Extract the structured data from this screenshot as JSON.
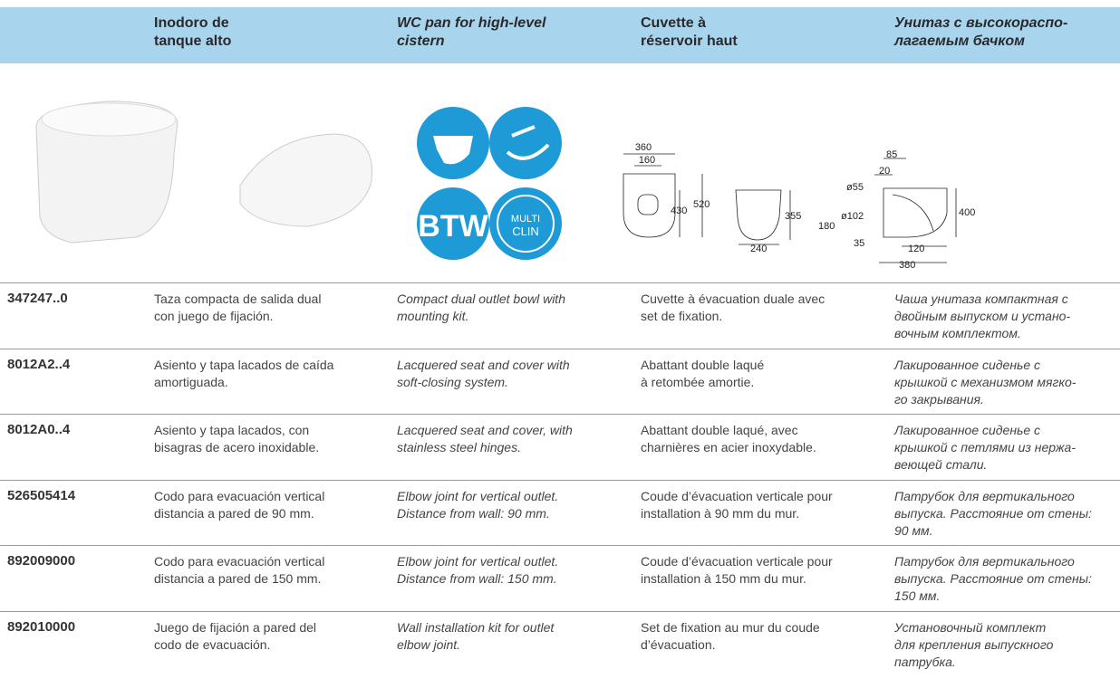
{
  "header": {
    "columns": [
      [
        "Inodoro de",
        "tanque alto"
      ],
      [
        "WC pan for high-level",
        "cistern"
      ],
      [
        "Cuvette à",
        "réservoir haut"
      ],
      [
        "Унитаз с высокораспо-",
        "лагаемым бачком"
      ]
    ]
  },
  "icons": {
    "btw": "BTW",
    "multiclin": [
      "MULTI",
      "CLIN"
    ]
  },
  "drawings": {
    "front": {
      "width_top": "360",
      "width_inner": "160",
      "height_total": "520",
      "height_inner": "430"
    },
    "side": {
      "height": "355",
      "width": "240"
    },
    "section": {
      "top": "85",
      "offset": "20",
      "d1": "ø55",
      "d2": "ø102",
      "h_outlet": "180",
      "height": "400",
      "bottom": "35",
      "depth_inner": "120",
      "depth": "380"
    }
  },
  "table": {
    "rows": [
      {
        "code": "347247..0",
        "cells": [
          [
            "Taza compacta de salida dual",
            "con juego de fijación."
          ],
          [
            "Compact dual outlet bowl with",
            "mounting kit."
          ],
          [
            "Cuvette à évacuation duale avec",
            "set de fixation."
          ],
          [
            "Чаша унитаза компактная с",
            "двойным выпуском и устано-",
            "вочным комплектом."
          ]
        ]
      },
      {
        "code": "8012A2..4",
        "cells": [
          [
            "Asiento y tapa lacados de caída",
            "amortiguada."
          ],
          [
            "Lacquered seat and cover with",
            "soft-closing system."
          ],
          [
            "Abattant double laqué",
            "à retombée amortie."
          ],
          [
            "Лакированное сиденье с",
            "крышкой с механизмом мягко-",
            "го закрывания."
          ]
        ]
      },
      {
        "code": "8012A0..4",
        "cells": [
          [
            "Asiento y tapa lacados, con",
            "bisagras de acero inoxidable."
          ],
          [
            "Lacquered seat and cover, with",
            "stainless steel hinges."
          ],
          [
            "Abattant double laqué, avec",
            "charnières en acier inoxydable."
          ],
          [
            "Лакированное сиденье с",
            "крышкой с петлями из нержа-",
            "веющей стали."
          ]
        ]
      },
      {
        "code": "526505414",
        "cells": [
          [
            "Codo para evacuación vertical",
            "distancia a pared de 90 mm."
          ],
          [
            "Elbow joint for vertical outlet.",
            "Distance from wall: 90 mm."
          ],
          [
            "Coude d’évacuation verticale pour",
            "installation à 90 mm du mur."
          ],
          [
            "Патрубок для вертикального",
            "выпуска. Расстояние от стены:",
            "90 мм."
          ]
        ]
      },
      {
        "code": "892009000",
        "cells": [
          [
            "Codo para evacuación vertical",
            "distancia a pared de 150 mm."
          ],
          [
            "Elbow joint for vertical outlet.",
            "Distance from wall: 150 mm."
          ],
          [
            "Coude d’évacuation verticale pour",
            "installation à 150 mm du mur."
          ],
          [
            "Патрубок для вертикального",
            "выпуска. Расстояние от стены:",
            "150 мм."
          ]
        ]
      },
      {
        "code": "892010000",
        "cells": [
          [
            "Juego de fijación a pared del",
            "codo de evacuación."
          ],
          [
            "Wall installation kit for outlet",
            "elbow joint."
          ],
          [
            "Set de fixation au mur du coude",
            "d’évacuation."
          ],
          [
            "Установочный комплект",
            "для крепления выпускного",
            "патрубка."
          ]
        ]
      }
    ]
  }
}
